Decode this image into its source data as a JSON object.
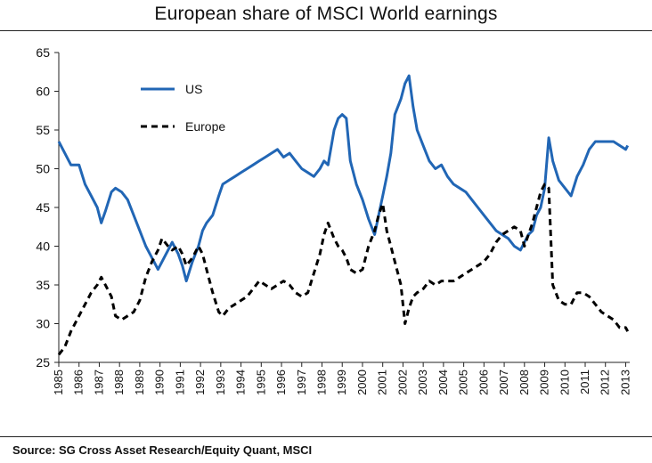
{
  "header": {
    "title": "European share of MSCI World earnings"
  },
  "footer": {
    "source": "Source: SG Cross Asset Research/Equity Quant, MSCI"
  },
  "colors": {
    "us": "#2166b5",
    "europe": "#000000"
  },
  "chart_data": {
    "type": "line",
    "title": "European share of MSCI World earnings",
    "xlabel": "",
    "ylabel": "",
    "xlim": [
      1985,
      2013.2
    ],
    "ylim": [
      25,
      65
    ],
    "yticks": [
      25,
      30,
      35,
      40,
      45,
      50,
      55,
      60,
      65
    ],
    "xticks": [
      "1985",
      "1986",
      "1987",
      "1988",
      "1989",
      "1990",
      "1991",
      "1992",
      "1993",
      "1994",
      "1995",
      "1996",
      "1997",
      "1998",
      "1999",
      "2000",
      "2001",
      "2002",
      "2003",
      "2004",
      "2005",
      "2006",
      "2007",
      "2008",
      "2009",
      "2010",
      "2011",
      "2012",
      "2013"
    ],
    "grid": false,
    "legend": {
      "position": "top-left",
      "entries": [
        "US",
        "Europe"
      ]
    },
    "series": [
      {
        "name": "US",
        "style": "solid",
        "x": [
          1985.0,
          1985.3,
          1985.6,
          1986.0,
          1986.3,
          1986.6,
          1986.9,
          1987.1,
          1987.3,
          1987.6,
          1987.8,
          1988.1,
          1988.4,
          1988.7,
          1989.0,
          1989.3,
          1989.6,
          1989.9,
          1990.1,
          1990.4,
          1990.6,
          1990.9,
          1991.1,
          1991.3,
          1991.6,
          1991.9,
          1992.1,
          1992.3,
          1992.6,
          1992.9,
          1993.1,
          1993.4,
          1993.7,
          1994.0,
          1994.3,
          1994.6,
          1994.9,
          1995.2,
          1995.5,
          1995.8,
          1996.1,
          1996.4,
          1996.7,
          1997.0,
          1997.3,
          1997.6,
          1997.9,
          1998.1,
          1998.3,
          1998.6,
          1998.8,
          1999.0,
          1999.2,
          1999.4,
          1999.7,
          2000.0,
          2000.3,
          2000.6,
          2000.8,
          2001.0,
          2001.2,
          2001.4,
          2001.6,
          2001.9,
          2002.1,
          2002.3,
          2002.5,
          2002.7,
          2003.0,
          2003.3,
          2003.6,
          2003.9,
          2004.2,
          2004.5,
          2004.8,
          2005.1,
          2005.4,
          2005.7,
          2006.0,
          2006.3,
          2006.6,
          2006.9,
          2007.2,
          2007.5,
          2007.8,
          2008.0,
          2008.2,
          2008.4,
          2008.6,
          2008.8,
          2009.0,
          2009.2,
          2009.4,
          2009.7,
          2010.0,
          2010.3,
          2010.6,
          2010.9,
          2011.2,
          2011.5,
          2011.8,
          2012.1,
          2012.4,
          2012.7,
          2013.0,
          2013.1
        ],
        "values": [
          53.5,
          52.0,
          50.5,
          50.5,
          48.0,
          46.5,
          45.0,
          43.0,
          44.5,
          47.0,
          47.5,
          47.0,
          46.0,
          44.0,
          42.0,
          40.0,
          38.5,
          37.0,
          38.0,
          39.5,
          40.5,
          39.0,
          37.5,
          35.5,
          38.0,
          40.0,
          42.0,
          43.0,
          44.0,
          46.5,
          48.0,
          48.5,
          49.0,
          49.5,
          50.0,
          50.5,
          51.0,
          51.5,
          52.0,
          52.5,
          51.5,
          52.0,
          51.0,
          50.0,
          49.5,
          49.0,
          50.0,
          51.0,
          50.5,
          55.0,
          56.5,
          57.0,
          56.5,
          51.0,
          48.0,
          46.0,
          43.5,
          41.5,
          44.0,
          46.5,
          49.0,
          52.0,
          57.0,
          59.0,
          61.0,
          62.0,
          58.0,
          55.0,
          53.0,
          51.0,
          50.0,
          50.5,
          49.0,
          48.0,
          47.5,
          47.0,
          46.0,
          45.0,
          44.0,
          43.0,
          42.0,
          41.5,
          41.0,
          40.0,
          39.5,
          40.5,
          41.5,
          42.0,
          44.0,
          45.0,
          47.5,
          54.0,
          51.0,
          48.5,
          47.5,
          46.5,
          49.0,
          50.5,
          52.5,
          53.5,
          53.5,
          53.5,
          53.5,
          53.0,
          52.5,
          53.0
        ]
      },
      {
        "name": "Europe",
        "style": "dashed",
        "x": [
          1985.0,
          1985.3,
          1985.6,
          1986.0,
          1986.3,
          1986.6,
          1986.9,
          1987.1,
          1987.3,
          1987.6,
          1987.8,
          1988.1,
          1988.4,
          1988.7,
          1989.0,
          1989.3,
          1989.6,
          1989.9,
          1990.1,
          1990.4,
          1990.6,
          1990.9,
          1991.1,
          1991.3,
          1991.6,
          1991.9,
          1992.1,
          1992.3,
          1992.6,
          1992.9,
          1993.1,
          1993.4,
          1993.7,
          1994.0,
          1994.3,
          1994.6,
          1994.9,
          1995.2,
          1995.5,
          1995.8,
          1996.1,
          1996.4,
          1996.7,
          1997.0,
          1997.3,
          1997.6,
          1997.9,
          1998.1,
          1998.3,
          1998.6,
          1998.8,
          1999.0,
          1999.2,
          1999.4,
          1999.7,
          2000.0,
          2000.3,
          2000.6,
          2000.8,
          2001.0,
          2001.2,
          2001.4,
          2001.6,
          2001.9,
          2002.1,
          2002.3,
          2002.5,
          2002.7,
          2003.0,
          2003.3,
          2003.6,
          2003.9,
          2004.2,
          2004.5,
          2004.8,
          2005.1,
          2005.4,
          2005.7,
          2006.0,
          2006.3,
          2006.6,
          2006.9,
          2007.2,
          2007.5,
          2007.8,
          2008.0,
          2008.2,
          2008.4,
          2008.6,
          2008.8,
          2009.0,
          2009.2,
          2009.4,
          2009.7,
          2010.0,
          2010.3,
          2010.6,
          2010.9,
          2011.2,
          2011.5,
          2011.8,
          2012.1,
          2012.4,
          2012.7,
          2013.0,
          2013.1
        ],
        "values": [
          26.0,
          27.0,
          29.0,
          31.0,
          32.5,
          34.0,
          35.0,
          36.0,
          35.0,
          33.5,
          31.0,
          30.5,
          31.0,
          31.5,
          33.0,
          36.0,
          38.0,
          39.5,
          41.0,
          40.0,
          39.5,
          40.0,
          39.0,
          37.5,
          38.5,
          40.0,
          39.0,
          37.0,
          34.0,
          31.5,
          31.0,
          32.0,
          32.5,
          33.0,
          33.5,
          34.5,
          35.5,
          35.0,
          34.5,
          35.0,
          35.5,
          35.0,
          34.0,
          33.5,
          34.0,
          36.5,
          39.0,
          41.5,
          43.0,
          41.0,
          40.0,
          39.5,
          38.5,
          37.0,
          36.5,
          37.0,
          40.0,
          42.0,
          44.0,
          45.5,
          42.0,
          40.0,
          38.0,
          35.0,
          30.0,
          32.0,
          33.5,
          34.0,
          34.5,
          35.5,
          35.0,
          35.5,
          35.5,
          35.5,
          36.0,
          36.5,
          37.0,
          37.5,
          38.0,
          39.0,
          40.5,
          41.5,
          42.0,
          42.5,
          42.0,
          40.0,
          41.5,
          43.0,
          45.0,
          47.0,
          48.0,
          47.5,
          35.0,
          33.0,
          32.5,
          32.5,
          34.0,
          34.0,
          33.5,
          32.5,
          31.5,
          31.0,
          30.5,
          29.5,
          29.5,
          29.0
        ]
      }
    ]
  }
}
